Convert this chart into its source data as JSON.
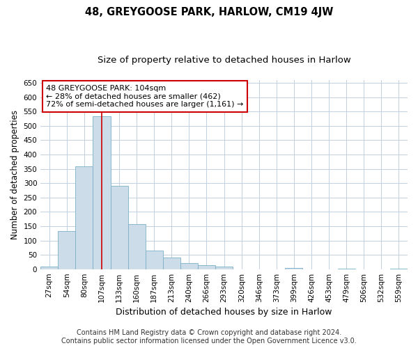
{
  "title": "48, GREYGOOSE PARK, HARLOW, CM19 4JW",
  "subtitle": "Size of property relative to detached houses in Harlow",
  "xlabel": "Distribution of detached houses by size in Harlow",
  "ylabel": "Number of detached properties",
  "categories": [
    "27sqm",
    "54sqm",
    "80sqm",
    "107sqm",
    "133sqm",
    "160sqm",
    "187sqm",
    "213sqm",
    "240sqm",
    "266sqm",
    "293sqm",
    "320sqm",
    "346sqm",
    "373sqm",
    "399sqm",
    "426sqm",
    "453sqm",
    "479sqm",
    "506sqm",
    "532sqm",
    "559sqm"
  ],
  "values": [
    10,
    133,
    358,
    533,
    290,
    158,
    65,
    40,
    22,
    15,
    10,
    0,
    0,
    0,
    4,
    0,
    0,
    2,
    0,
    0,
    2
  ],
  "bar_color": "#ccdce8",
  "bar_edge_color": "#7aafc8",
  "vline_x_index": 3,
  "vline_color": "#cc0000",
  "annotation_line1": "48 GREYGOOSE PARK: 104sqm",
  "annotation_line2": "← 28% of detached houses are smaller (462)",
  "annotation_line3": "72% of semi-detached houses are larger (1,161) →",
  "annotation_box_color": "#ffffff",
  "annotation_box_edge_color": "#cc0000",
  "ylim": [
    0,
    660
  ],
  "yticks": [
    0,
    50,
    100,
    150,
    200,
    250,
    300,
    350,
    400,
    450,
    500,
    550,
    600,
    650
  ],
  "footer_line1": "Contains HM Land Registry data © Crown copyright and database right 2024.",
  "footer_line2": "Contains public sector information licensed under the Open Government Licence v3.0.",
  "bg_color": "#ffffff",
  "grid_color": "#c0d0e0",
  "title_fontsize": 10.5,
  "subtitle_fontsize": 9.5,
  "xlabel_fontsize": 9,
  "ylabel_fontsize": 8.5,
  "tick_fontsize": 7.5,
  "annotation_fontsize": 8,
  "footer_fontsize": 7
}
